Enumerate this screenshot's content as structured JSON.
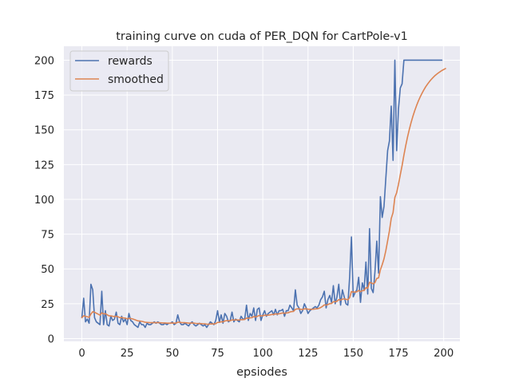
{
  "chart_data": {
    "type": "line",
    "title": "training curve on cuda of PER_DQN for CartPole-v1",
    "xlabel": "epsiodes",
    "ylabel": "",
    "xlim": [
      -9.95,
      208.95
    ],
    "ylim": [
      -2,
      210
    ],
    "xticks": [
      0,
      25,
      50,
      75,
      100,
      125,
      150,
      175,
      200
    ],
    "yticks": [
      0,
      25,
      50,
      75,
      100,
      125,
      150,
      175,
      200
    ],
    "grid": true,
    "legend_position": "top-left",
    "background_color": "#eaeaf2",
    "grid_color": "#ffffff",
    "series": [
      {
        "name": "rewards",
        "color": "#4c72b0",
        "x_start": 0,
        "values": [
          15,
          29,
          12,
          14,
          11,
          39,
          35,
          15,
          12,
          11,
          10,
          34,
          10,
          20,
          10,
          9,
          16,
          13,
          14,
          19,
          11,
          10,
          16,
          12,
          14,
          10,
          18,
          13,
          12,
          10,
          9,
          8,
          12,
          10,
          10,
          8,
          11,
          10,
          10,
          11,
          12,
          11,
          12,
          11,
          10,
          10,
          11,
          10,
          11,
          11,
          12,
          10,
          11,
          17,
          12,
          10,
          10,
          11,
          10,
          9,
          11,
          12,
          10,
          9,
          10,
          11,
          10,
          9,
          10,
          8,
          10,
          12,
          11,
          10,
          13,
          20,
          12,
          17,
          11,
          18,
          16,
          12,
          13,
          19,
          12,
          14,
          13,
          12,
          16,
          14,
          14,
          24,
          13,
          18,
          16,
          22,
          13,
          21,
          22,
          13,
          17,
          20,
          16,
          18,
          19,
          20,
          17,
          21,
          17,
          20,
          20,
          21,
          16,
          20,
          20,
          24,
          22,
          20,
          35,
          24,
          22,
          18,
          20,
          25,
          22,
          18,
          20,
          21,
          22,
          23,
          22,
          24,
          28,
          30,
          34,
          22,
          28,
          31,
          26,
          38,
          25,
          30,
          39,
          24,
          35,
          30,
          25,
          24,
          44,
          73,
          30,
          33,
          35,
          44,
          26,
          40,
          35,
          55,
          32,
          79,
          36,
          33,
          48,
          70,
          47,
          102,
          87,
          95,
          115,
          135,
          142,
          167,
          128,
          200,
          135,
          165,
          180,
          183,
          200,
          200,
          200,
          200,
          200,
          200,
          200,
          200,
          200,
          200,
          200,
          200,
          200,
          200,
          200,
          200,
          200,
          200,
          200,
          200,
          200,
          200
        ]
      },
      {
        "name": "smoothed",
        "color": "#dd8452",
        "x_start": 0,
        "values": [
          15,
          16.4,
          15.9,
          15.7,
          15.2,
          17.6,
          19.3,
          18.9,
          18.2,
          17.5,
          16.8,
          18.5,
          17.7,
          17.9,
          17.1,
          16.3,
          16.3,
          16,
          15.8,
          16.1,
          15.6,
          15,
          15.1,
          14.8,
          14.7,
          14.2,
          14.5,
          14.4,
          14.1,
          13.7,
          13.2,
          12.7,
          12.6,
          12.4,
          12.1,
          11.7,
          11.6,
          11.5,
          11.4,
          11.4,
          11.4,
          11.4,
          11.4,
          11.4,
          11.3,
          11.2,
          11.2,
          11.1,
          11.1,
          11.1,
          11.2,
          11.1,
          11.1,
          11.7,
          11.7,
          11.5,
          11.4,
          11.4,
          11.3,
          11.1,
          11.1,
          11.2,
          11.1,
          10.9,
          10.8,
          10.8,
          10.7,
          10.6,
          10.6,
          10.3,
          10.3,
          10.5,
          10.5,
          10.5,
          10.7,
          11.6,
          11.6,
          12.1,
          12,
          12.6,
          12.9,
          12.8,
          12.8,
          13.4,
          13.3,
          13.4,
          13.4,
          13.3,
          13.6,
          13.6,
          13.7,
          14.7,
          14.5,
          14.9,
          15,
          15.8,
          15.5,
          16,
          16.6,
          16.3,
          16.4,
          16.8,
          16.7,
          16.8,
          17,
          17.3,
          17.3,
          17.7,
          17.6,
          17.8,
          18.1,
          18.4,
          18.2,
          18.4,
          18.5,
          19.1,
          19.4,
          19.5,
          21.0,
          21.3,
          21.3,
          21,
          20.9,
          21.3,
          21.4,
          21.1,
          21,
          21,
          21.1,
          21.3,
          21.4,
          21.7,
          22.3,
          23.1,
          24.2,
          24,
          24.4,
          25.1,
          25.2,
          26.5,
          26.4,
          26.8,
          28,
          27.6,
          28.3,
          28.5,
          28.2,
          27.8,
          29.4,
          33.8,
          33.4,
          33.4,
          33.6,
          34.6,
          33.7,
          34.4,
          34.5,
          36.6,
          36.1,
          40.4,
          40,
          39.3,
          40.2,
          43.2,
          43.6,
          49.4,
          53.1,
          57.3,
          63.1,
          70.2,
          77.4,
          86.3,
          90.5,
          101.4,
          104.8,
          110.8,
          117.7,
          124.3,
          131.8,
          138.6,
          144.8,
          150.3,
          155.3,
          159.8,
          163.8,
          167.4,
          170.7,
          173.6,
          176.2,
          178.6,
          180.8,
          182.7,
          184.4,
          186,
          187.4,
          188.7,
          189.8,
          190.8,
          191.7,
          192.6,
          193.3,
          194
        ]
      }
    ]
  }
}
